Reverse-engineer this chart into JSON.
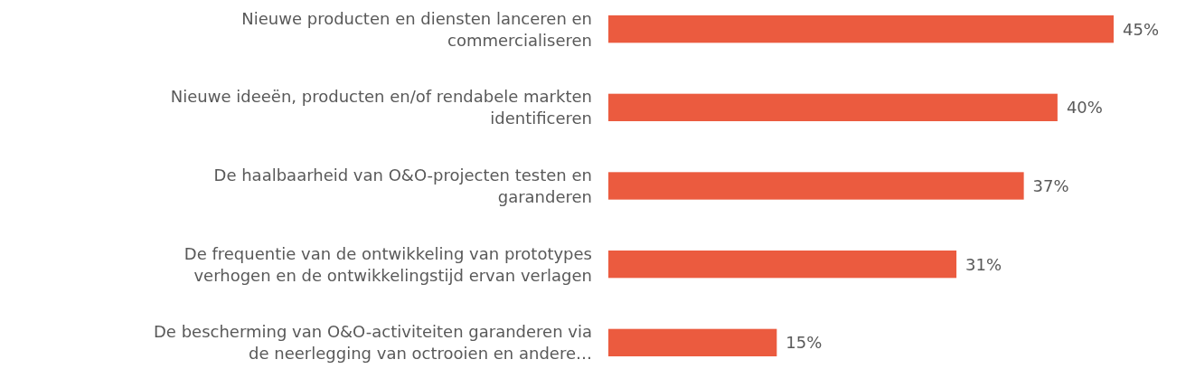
{
  "chart_data": {
    "type": "bar",
    "orientation": "horizontal",
    "categories": [
      "Nieuwe producten en diensten lanceren en commercialiseren",
      "Nieuwe ideeën, producten en/of rendabele markten identificeren",
      "De haalbaarheid van O&O-projecten testen en garanderen",
      "De frequentie van de ontwikkeling van prototypes verhogen en de ontwikkelingstijd ervan verlagen",
      "De bescherming van O&O-activiteiten garanderen via de neerlegging van octrooien en andere…"
    ],
    "values": [
      45,
      40,
      37,
      31,
      15
    ],
    "value_labels": [
      "45%",
      "40%",
      "37%",
      "31%",
      "15%"
    ],
    "color": "#eb5b3f"
  }
}
